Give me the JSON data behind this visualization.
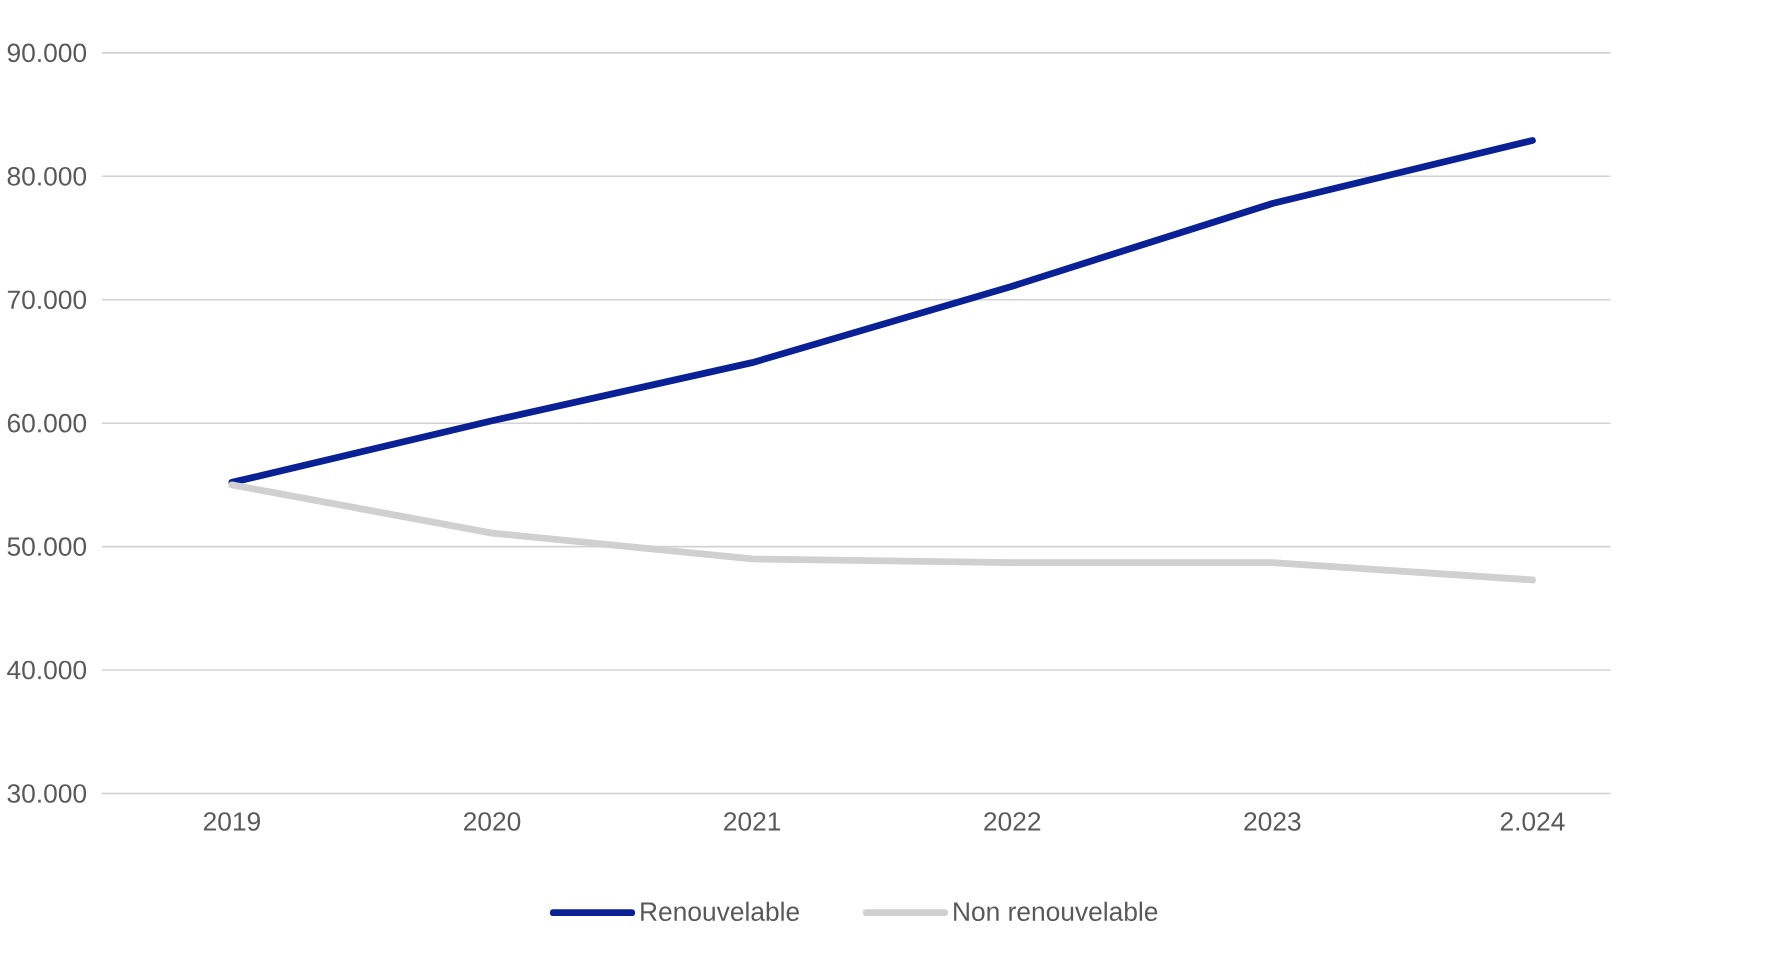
{
  "chart_data": {
    "type": "line",
    "categories": [
      "2019",
      "2020",
      "2021",
      "2022",
      "2023",
      "2.024"
    ],
    "series": [
      {
        "name": "Renouvelable",
        "color": "#0a2196",
        "values": [
          55200,
          60200,
          64900,
          71100,
          77800,
          82900
        ]
      },
      {
        "name": "Non renouvelable",
        "color": "#d0d0d0",
        "values": [
          55000,
          51100,
          49000,
          48700,
          48700,
          47300
        ]
      }
    ],
    "ylim": [
      30000,
      90000
    ],
    "yticks": [
      {
        "value": 30000,
        "label": "30.000"
      },
      {
        "value": 40000,
        "label": "40.000"
      },
      {
        "value": 50000,
        "label": "50.000"
      },
      {
        "value": 60000,
        "label": "60.000"
      },
      {
        "value": 70000,
        "label": "70.000"
      },
      {
        "value": 80000,
        "label": "80.000"
      },
      {
        "value": 90000,
        "label": "90.000"
      }
    ],
    "grid": "y",
    "legend": "bottom",
    "marker": "none",
    "line_style": "solid"
  }
}
